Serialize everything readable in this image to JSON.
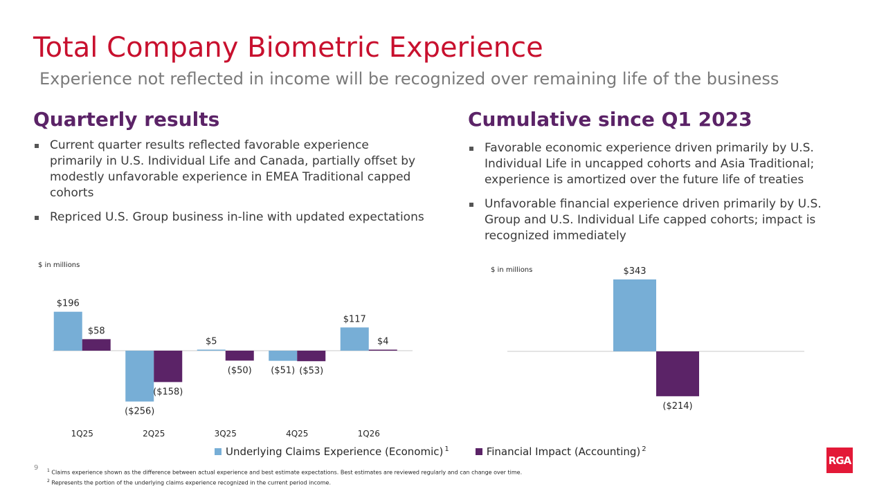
{
  "title": "Total Company Biometric Experience",
  "subtitle": "Experience not reflected in income will be recognized over remaining life of the business",
  "left": {
    "heading": "Quarterly results",
    "bullets": [
      "Current quarter results reflected favorable experience primarily in U.S. Individual Life and Canada, partially offset by modestly unfavorable experience in EMEA Traditional capped cohorts",
      "Repriced U.S. Group business in-line with updated expectations"
    ]
  },
  "right": {
    "heading": "Cumulative since Q1 2023",
    "bullets": [
      "Favorable economic experience driven primarily by U.S. Individual Life in uncapped cohorts and Asia Traditional; experience is amortized over the future life of treaties",
      "Unfavorable financial experience driven primarily by U.S. Group and U.S. Individual Life capped cohorts; impact is recognized immediately"
    ]
  },
  "colors": {
    "economic": "#77aed6",
    "accounting": "#5b2367",
    "title": "#c8102e",
    "heading": "#5b2367"
  },
  "chart_data": [
    {
      "type": "bar",
      "unit_label": "$ in millions",
      "categories": [
        "1Q25",
        "2Q25",
        "3Q25",
        "4Q25",
        "1Q26"
      ],
      "series": [
        {
          "name": "Underlying Claims Experience (Economic)",
          "values": [
            196,
            -256,
            5,
            -51,
            117
          ],
          "labels": [
            "$196",
            "($256)",
            "$5",
            "($51)",
            "$117"
          ]
        },
        {
          "name": "Financial Impact (Accounting)",
          "values": [
            58,
            -158,
            -50,
            -53,
            4
          ],
          "labels": [
            "$58",
            "($158)",
            "($50)",
            "($53)",
            "$4"
          ]
        }
      ],
      "legend": "bottom"
    },
    {
      "type": "bar",
      "unit_label": "$ in millions",
      "categories": [
        ""
      ],
      "series": [
        {
          "name": "Underlying Claims Experience (Economic)",
          "values": [
            343
          ],
          "labels": [
            "$343"
          ]
        },
        {
          "name": "Financial Impact (Accounting)",
          "values": [
            -214
          ],
          "labels": [
            "($214)"
          ]
        }
      ]
    }
  ],
  "legend": {
    "items": [
      {
        "label": "Underlying Claims Experience (Economic)",
        "note": "1"
      },
      {
        "label": "Financial Impact (Accounting)",
        "note": "2"
      }
    ]
  },
  "footnotes": [
    {
      "mark": "1",
      "text": "Claims experience shown as the difference between actual experience and best estimate expectations. Best estimates are reviewed regularly and can change over time."
    },
    {
      "mark": "2",
      "text": "Represents the portion of the underlying claims experience recognized in the current period income."
    }
  ],
  "page_number": "9",
  "logo": "RGA"
}
